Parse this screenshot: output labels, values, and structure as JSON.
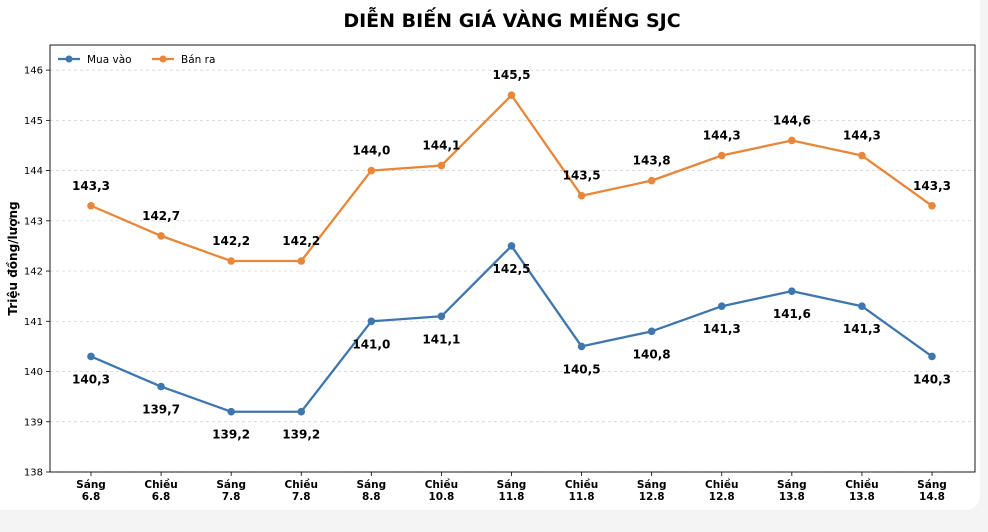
{
  "chart_data": {
    "type": "line",
    "title": "DIỄN BIẾN GIÁ VÀNG MIẾNG SJC",
    "xlabel": "",
    "ylabel": "Triệu đồng/lượng",
    "ylim": [
      138,
      146.5
    ],
    "yticks": [
      "138",
      "139",
      "140",
      "141",
      "142",
      "143",
      "144",
      "145",
      "146"
    ],
    "grid": true,
    "legend_position": "top-left",
    "categories": [
      [
        "Sáng",
        "6.8"
      ],
      [
        "Chiều",
        "6.8"
      ],
      [
        "Sáng",
        "7.8"
      ],
      [
        "Chiều",
        "7.8"
      ],
      [
        "Sáng",
        "8.8"
      ],
      [
        "Chiều",
        "10.8"
      ],
      [
        "Sáng",
        "11.8"
      ],
      [
        "Chiều",
        "11.8"
      ],
      [
        "Sáng",
        "12.8"
      ],
      [
        "Chiều",
        "12.8"
      ],
      [
        "Sáng",
        "13.8"
      ],
      [
        "Chiều",
        "13.8"
      ],
      [
        "Sáng",
        "14.8"
      ]
    ],
    "series": [
      {
        "name": "Mua vào",
        "color": "#3f76ad",
        "values": [
          140.3,
          139.7,
          139.2,
          139.2,
          141.0,
          141.1,
          142.5,
          140.5,
          140.8,
          141.3,
          141.6,
          141.3,
          140.3
        ],
        "labels": [
          "140,3",
          "139,7",
          "139,2",
          "139,2",
          "141,0",
          "141,1",
          "142,5",
          "140,5",
          "140,8",
          "141,3",
          "141,6",
          "141,3",
          "140,3"
        ],
        "label_position": "below"
      },
      {
        "name": "Bán ra",
        "color": "#e8873a",
        "values": [
          143.3,
          142.7,
          142.2,
          142.2,
          144.0,
          144.1,
          145.5,
          143.5,
          143.8,
          144.3,
          144.6,
          144.3,
          143.3
        ],
        "labels": [
          "143,3",
          "142,7",
          "142,2",
          "142,2",
          "144,0",
          "144,1",
          "145,5",
          "143,5",
          "143,8",
          "144,3",
          "144,6",
          "144,3",
          "143,3"
        ],
        "label_position": "above"
      }
    ]
  }
}
